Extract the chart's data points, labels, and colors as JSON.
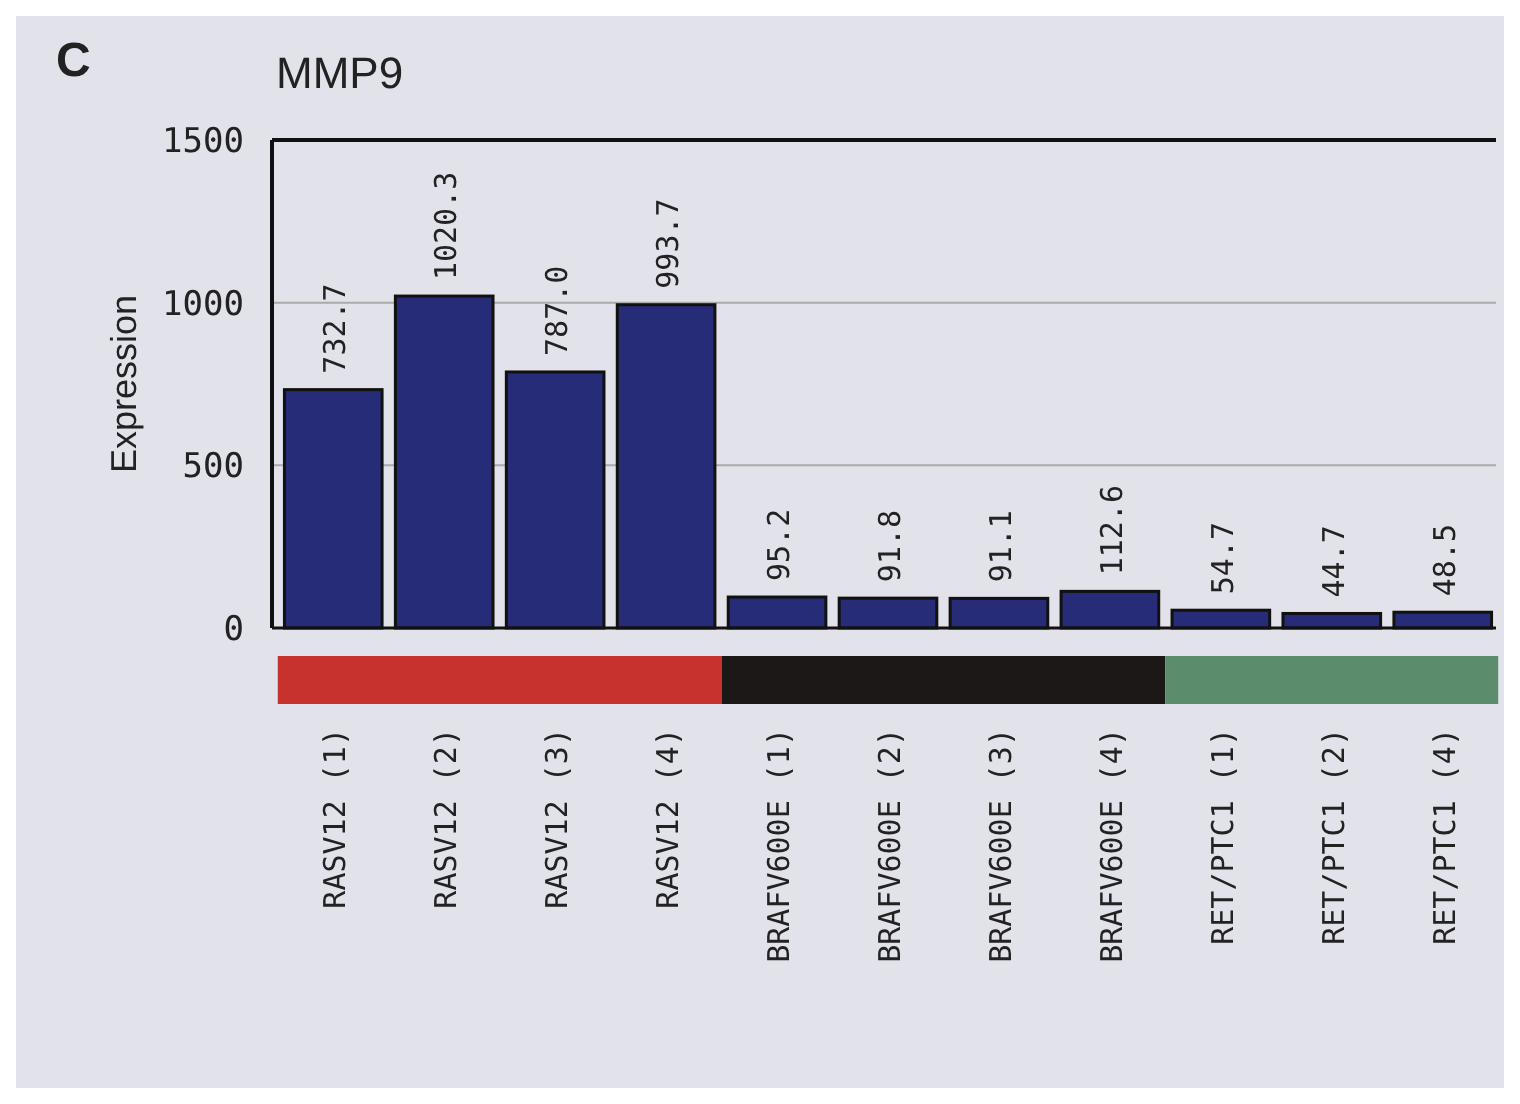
{
  "chart_data": {
    "type": "bar",
    "title": "MMP9",
    "ylabel": "Expression",
    "annotations": [
      "C"
    ],
    "categories": [
      "RASV12 (1)",
      "RASV12 (2)",
      "RASV12 (3)",
      "RASV12 (4)",
      "BRAFV600E (1)",
      "BRAFV600E (2)",
      "BRAFV600E (3)",
      "BRAFV600E (4)",
      "RET/PTC1 (1)",
      "RET/PTC1 (2)",
      "RET/PTC1 (4)"
    ],
    "values": [
      732.7,
      1020.3,
      787.0,
      993.7,
      95.2,
      91.8,
      91.1,
      112.6,
      54.7,
      44.7,
      48.5
    ],
    "color": "#262c78",
    "ylim": [
      0,
      1500
    ],
    "yticks": [
      0,
      500,
      1000,
      1500
    ],
    "grid": "y",
    "value_labels": [
      "732.7",
      "1020.3",
      "787.0",
      "993.7",
      "95.2",
      "91.8",
      "91.1",
      "112.6",
      "54.7",
      "44.7",
      "48.5"
    ]
  }
}
